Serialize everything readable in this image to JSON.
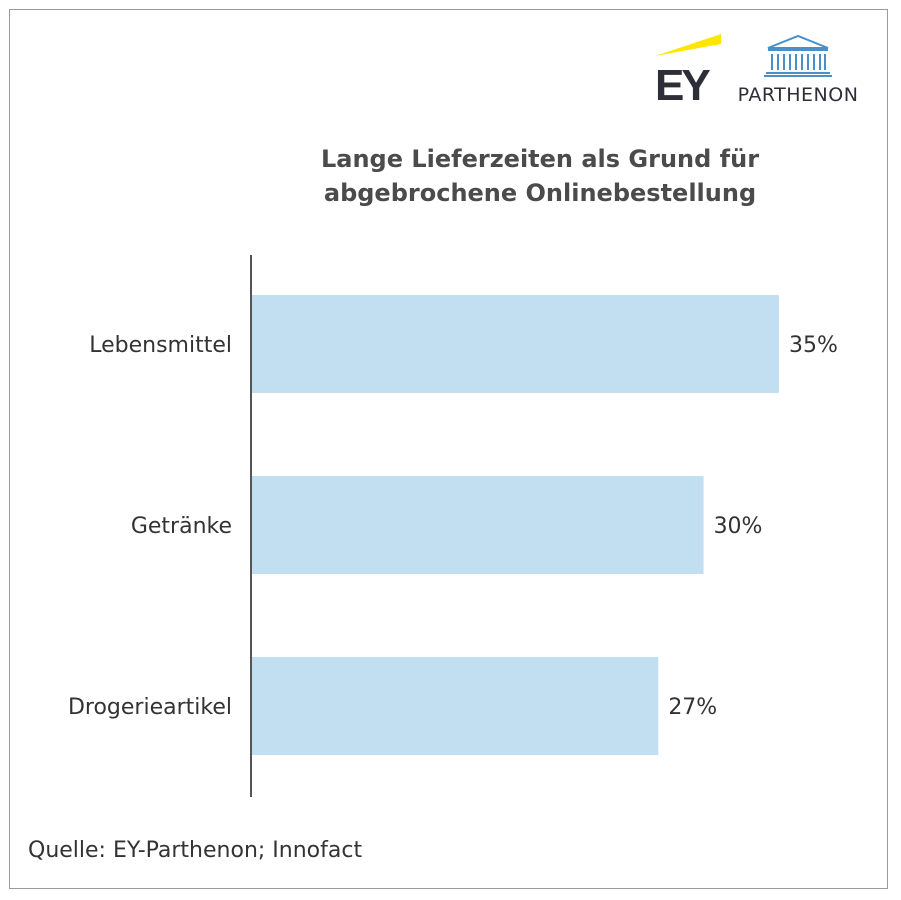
{
  "logos": {
    "ey": {
      "text": "EY",
      "accent_color": "#ffe600",
      "text_color": "#2e2e38"
    },
    "parthenon": {
      "text": "PARTHENON",
      "icon_color": "#4a90c8"
    }
  },
  "title_lines": [
    "Lange Lieferzeiten als Grund für",
    "abgebrochene Onlinebestellung"
  ],
  "source": "Quelle: EY-Parthenon; Innofact",
  "chart_data": {
    "type": "bar",
    "orientation": "horizontal",
    "title": "Lange Lieferzeiten als Grund für abgebrochene Onlinebestellung",
    "categories": [
      "Lebensmittel",
      "Getränke",
      "Drogerieartikel"
    ],
    "values": [
      35,
      30,
      27
    ],
    "value_labels": [
      "35%",
      "30%",
      "27%"
    ],
    "unit": "%",
    "xlabel": "",
    "ylabel": "",
    "xlim": [
      0,
      35
    ],
    "grid": false,
    "bar_color": "#c2dff2",
    "axis_color": "#555555"
  }
}
